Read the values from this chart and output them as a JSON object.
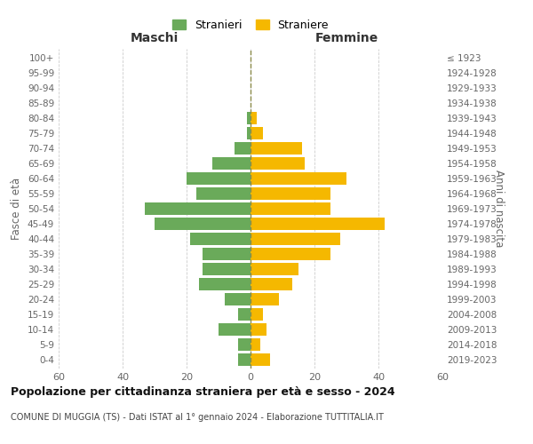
{
  "age_groups": [
    "0-4",
    "5-9",
    "10-14",
    "15-19",
    "20-24",
    "25-29",
    "30-34",
    "35-39",
    "40-44",
    "45-49",
    "50-54",
    "55-59",
    "60-64",
    "65-69",
    "70-74",
    "75-79",
    "80-84",
    "85-89",
    "90-94",
    "95-99",
    "100+"
  ],
  "birth_years": [
    "2019-2023",
    "2014-2018",
    "2009-2013",
    "2004-2008",
    "1999-2003",
    "1994-1998",
    "1989-1993",
    "1984-1988",
    "1979-1983",
    "1974-1978",
    "1969-1973",
    "1964-1968",
    "1959-1963",
    "1954-1958",
    "1949-1953",
    "1944-1948",
    "1939-1943",
    "1934-1938",
    "1929-1933",
    "1924-1928",
    "≤ 1923"
  ],
  "males": [
    4,
    4,
    10,
    4,
    8,
    16,
    15,
    15,
    19,
    30,
    33,
    17,
    20,
    12,
    5,
    1,
    1,
    0,
    0,
    0,
    0
  ],
  "females": [
    6,
    3,
    5,
    4,
    9,
    13,
    15,
    25,
    28,
    42,
    25,
    25,
    30,
    17,
    16,
    4,
    2,
    0,
    0,
    0,
    0
  ],
  "male_color": "#6aaa5a",
  "female_color": "#f5b800",
  "center_line_color": "#8b8b4a",
  "grid_color": "#cccccc",
  "background_color": "#ffffff",
  "title": "Popolazione per cittadinanza straniera per età e sesso - 2024",
  "subtitle": "COMUNE DI MUGGIA (TS) - Dati ISTAT al 1° gennaio 2024 - Elaborazione TUTTITALIA.IT",
  "legend_males": "Stranieri",
  "legend_females": "Straniere",
  "xlabel_left": "Maschi",
  "xlabel_right": "Femmine",
  "ylabel_left": "Fasce di età",
  "ylabel_right": "Anni di nascita",
  "xlim": 60,
  "label_color": "#666666"
}
